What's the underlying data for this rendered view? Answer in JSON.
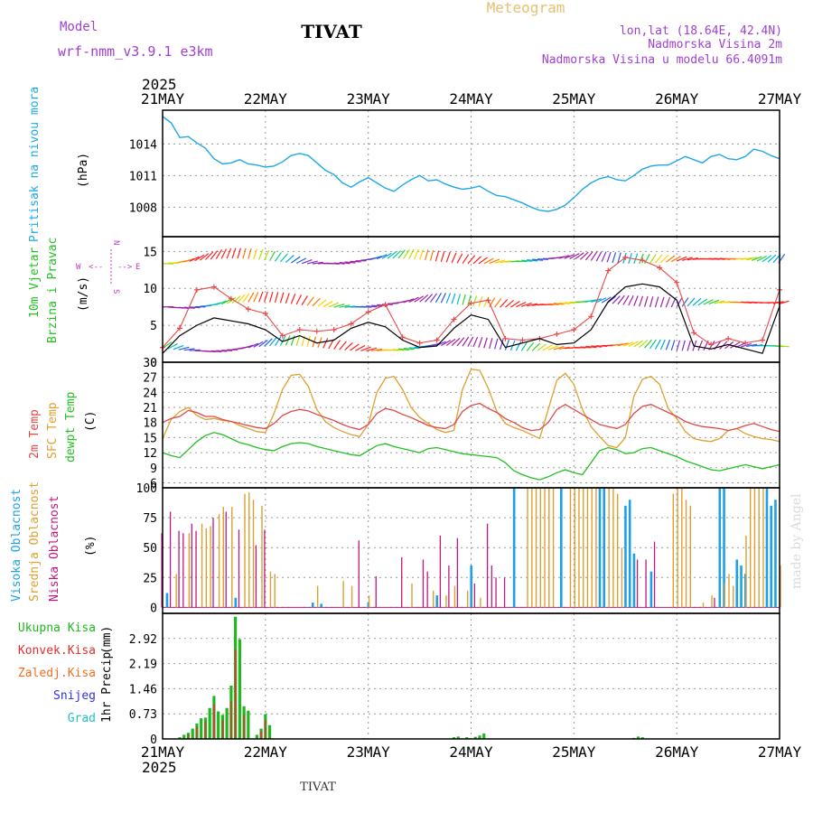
{
  "header": {
    "model_label": "Model",
    "model_name": "wrf-nmm_v3.9.1 e3km",
    "station": "TIVAT",
    "product": "Meteogram",
    "coords": "lon,lat (18.64E, 42.4N)",
    "elevation": "Nadmorska Visina 2m",
    "model_elevation": "Nadmorska Visina u modelu 66.4091m",
    "year_top": "2025",
    "year_bottom": "2025",
    "footer_station": "TIVAT",
    "watermark": "made by Angel"
  },
  "colors": {
    "pressure": "#1ea8e6",
    "gust": "#e84a4a",
    "wind_speed": "#000000",
    "temp2m": "#e04848",
    "sfc_temp": "#e0a030",
    "dewpoint": "#22c022",
    "high_cloud": "#1ea0e8",
    "mid_cloud": "#dca030",
    "low_cloud": "#c01880",
    "total_precip": "#1fb81f",
    "conv_precip": "#e03030",
    "frozen_precip": "#f07020",
    "snow": "#3030e0",
    "hail": "#20c0c0",
    "purple": "#a040d0",
    "compass": "#c040c0"
  },
  "chart_data": [
    {
      "type": "line",
      "name": "pressure",
      "ylabel_series": "Pritisak na nivou mora",
      "unit": "(hPa)",
      "ylim": [
        1005.2,
        1017.2
      ],
      "yticks": [
        1008,
        1011,
        1014
      ],
      "x_hours": [
        0,
        2,
        4,
        6,
        8,
        10,
        12,
        14,
        16,
        18,
        20,
        22,
        24,
        26,
        28,
        30,
        32,
        34,
        36,
        38,
        40,
        42,
        44,
        46,
        48,
        50,
        52,
        54,
        56,
        58,
        60,
        62,
        64,
        66,
        68,
        70,
        72,
        74,
        76,
        78,
        80,
        82,
        84,
        86,
        88,
        90,
        92,
        94,
        96,
        98,
        100,
        102,
        104,
        106,
        108,
        110,
        112,
        114,
        116,
        118,
        120,
        122,
        124,
        126,
        128,
        130,
        132,
        134,
        136,
        138,
        140,
        142,
        144
      ],
      "values": [
        1016.6,
        1016.0,
        1014.6,
        1014.7,
        1014.1,
        1013.6,
        1012.6,
        1012.1,
        1012.2,
        1012.5,
        1012.1,
        1012.0,
        1011.8,
        1011.9,
        1012.3,
        1012.9,
        1013.1,
        1012.9,
        1012.2,
        1011.5,
        1011.1,
        1010.3,
        1009.9,
        1010.4,
        1010.8,
        1010.3,
        1009.8,
        1009.5,
        1010.1,
        1010.6,
        1011.0,
        1010.5,
        1010.6,
        1010.2,
        1009.9,
        1009.7,
        1009.8,
        1010.0,
        1009.5,
        1009.1,
        1009.0,
        1008.7,
        1008.4,
        1008.0,
        1007.7,
        1007.6,
        1007.8,
        1008.2,
        1008.9,
        1009.7,
        1010.3,
        1010.7,
        1010.9,
        1010.6,
        1010.5,
        1011.0,
        1011.6,
        1011.9,
        1012.0,
        1012.0,
        1012.4,
        1012.8,
        1012.5,
        1012.2,
        1012.8,
        1013.0,
        1012.6,
        1012.5,
        1012.8,
        1013.5,
        1013.3,
        1012.9,
        1012.6
      ]
    },
    {
      "type": "line",
      "name": "wind",
      "ylabel_series_1": "10m Vjetar",
      "ylabel_series_2": "Brzina i Pravac",
      "unit": "(m/s)",
      "ylim": [
        0,
        17
      ],
      "yticks": [
        0,
        5,
        10,
        15
      ],
      "compass": {
        "n": "N",
        "s": "S",
        "e": "E",
        "w": "W"
      },
      "x_hours": [
        0,
        4,
        8,
        12,
        16,
        20,
        24,
        28,
        32,
        36,
        40,
        44,
        48,
        52,
        56,
        60,
        64,
        68,
        72,
        76,
        80,
        84,
        88,
        92,
        96,
        100,
        104,
        108,
        112,
        116,
        120,
        124,
        128,
        132,
        136,
        140,
        144
      ],
      "speed": [
        1.2,
        3.6,
        5.0,
        6.0,
        5.6,
        5.2,
        4.4,
        2.8,
        3.6,
        2.6,
        3.0,
        4.6,
        5.4,
        4.8,
        3.0,
        2.0,
        2.2,
        4.6,
        6.4,
        5.8,
        2.0,
        2.6,
        3.2,
        2.4,
        2.6,
        4.4,
        8.2,
        10.2,
        10.6,
        10.2,
        8.4,
        2.2,
        1.8,
        2.4,
        1.8,
        1.2,
        7.6
      ],
      "gust": [
        2.0,
        4.6,
        9.8,
        10.2,
        8.6,
        7.2,
        6.6,
        3.6,
        4.4,
        4.2,
        4.4,
        5.2,
        6.8,
        7.8,
        3.4,
        2.6,
        3.0,
        5.8,
        8.0,
        8.4,
        3.2,
        3.0,
        3.2,
        3.8,
        4.4,
        6.2,
        12.4,
        14.2,
        13.8,
        12.8,
        10.8,
        4.0,
        2.4,
        3.2,
        2.6,
        3.0,
        9.8
      ]
    },
    {
      "type": "line",
      "name": "temperature",
      "ylabel_series_1": "2m Temp",
      "ylabel_series_2": "SFC Temp",
      "ylabel_series_3": "dewpt Temp",
      "unit": "(C)",
      "ylim": [
        5,
        30
      ],
      "yticks": [
        6,
        9,
        12,
        15,
        18,
        21,
        24,
        27,
        30
      ],
      "x_hours": [
        0,
        2,
        4,
        6,
        8,
        10,
        12,
        14,
        16,
        18,
        20,
        22,
        24,
        26,
        28,
        30,
        32,
        34,
        36,
        38,
        40,
        42,
        44,
        46,
        48,
        50,
        52,
        54,
        56,
        58,
        60,
        62,
        64,
        66,
        68,
        70,
        72,
        74,
        76,
        78,
        80,
        82,
        84,
        86,
        88,
        90,
        92,
        94,
        96,
        98,
        100,
        102,
        104,
        106,
        108,
        110,
        112,
        114,
        116,
        118,
        120,
        122,
        124,
        126,
        128,
        130,
        132,
        134,
        136,
        138,
        140,
        142,
        144
      ],
      "t2m": [
        18.0,
        18.8,
        19.2,
        20.4,
        20.0,
        19.2,
        19.2,
        18.6,
        18.2,
        17.8,
        17.4,
        17.0,
        16.8,
        17.8,
        19.4,
        20.2,
        20.6,
        20.3,
        19.6,
        19.0,
        18.4,
        17.6,
        17.0,
        16.6,
        17.6,
        19.8,
        20.8,
        20.4,
        19.6,
        19.0,
        18.2,
        17.4,
        17.0,
        16.8,
        17.6,
        20.2,
        21.4,
        21.8,
        20.8,
        20.0,
        18.8,
        18.0,
        17.0,
        16.4,
        16.6,
        18.0,
        20.6,
        21.6,
        20.6,
        19.6,
        18.6,
        17.6,
        17.2,
        16.8,
        17.6,
        19.8,
        21.2,
        21.6,
        20.8,
        20.0,
        19.2,
        18.2,
        17.6,
        17.2,
        17.0,
        16.8,
        16.4,
        16.8,
        17.4,
        17.8,
        17.2,
        16.6,
        16.2
      ],
      "tsfc": [
        14.8,
        18.6,
        20.2,
        21.0,
        19.4,
        18.6,
        18.8,
        18.4,
        18.2,
        17.4,
        16.8,
        16.2,
        16.0,
        19.8,
        24.6,
        27.4,
        27.6,
        25.2,
        20.6,
        18.2,
        17.0,
        16.2,
        15.6,
        15.2,
        17.6,
        24.0,
        26.8,
        27.2,
        24.6,
        21.0,
        19.0,
        17.8,
        16.6,
        16.0,
        16.4,
        24.6,
        28.6,
        28.4,
        24.8,
        20.2,
        17.8,
        17.0,
        16.4,
        15.6,
        14.8,
        20.6,
        26.4,
        27.8,
        25.6,
        20.6,
        17.2,
        15.2,
        13.4,
        13.0,
        15.0,
        23.2,
        26.6,
        27.2,
        25.6,
        20.8,
        18.8,
        16.2,
        14.8,
        14.4,
        14.2,
        14.8,
        16.4,
        16.8,
        15.8,
        15.2,
        14.8,
        14.6,
        14.2
      ],
      "dewpt": [
        12.0,
        11.4,
        11.0,
        12.6,
        14.2,
        15.4,
        16.0,
        15.6,
        14.8,
        14.0,
        13.6,
        13.0,
        12.6,
        12.4,
        13.2,
        13.8,
        14.0,
        13.8,
        13.2,
        12.8,
        12.4,
        12.0,
        11.6,
        11.4,
        12.4,
        13.4,
        13.8,
        13.2,
        12.8,
        12.4,
        12.0,
        12.8,
        13.0,
        12.6,
        12.2,
        11.8,
        11.6,
        11.4,
        11.2,
        11.0,
        10.0,
        8.4,
        7.6,
        7.0,
        6.6,
        7.2,
        8.0,
        8.6,
        8.0,
        7.6,
        10.0,
        12.4,
        13.0,
        12.6,
        11.8,
        12.0,
        12.8,
        13.0,
        12.4,
        11.8,
        11.2,
        10.4,
        9.8,
        9.2,
        8.6,
        8.4,
        8.8,
        9.2,
        9.6,
        9.2,
        8.8,
        9.2,
        9.6
      ]
    },
    {
      "type": "bar",
      "name": "clouds",
      "ylabel_series_1": "Visoka Oblacnost",
      "ylabel_series_2": "Srednja Oblacnost",
      "ylabel_series_3": "Niska Oblacnost",
      "unit": "(%)",
      "ylim": [
        -5,
        100
      ],
      "yticks": [
        0,
        25,
        50,
        75,
        100
      ],
      "high": [
        [
          1,
          12
        ],
        [
          17,
          8
        ],
        [
          35,
          4
        ],
        [
          37,
          3
        ],
        [
          48,
          4
        ],
        [
          64,
          10
        ],
        [
          72,
          35
        ],
        [
          82,
          100
        ],
        [
          93,
          100
        ],
        [
          102,
          100
        ],
        [
          103,
          100
        ],
        [
          108,
          85
        ],
        [
          109,
          90
        ],
        [
          110,
          45
        ],
        [
          114,
          30
        ],
        [
          130,
          100
        ],
        [
          131,
          100
        ],
        [
          134,
          40
        ],
        [
          135,
          35
        ],
        [
          136,
          28
        ],
        [
          141,
          100
        ],
        [
          142,
          85
        ],
        [
          143,
          90
        ]
      ],
      "mid": [
        [
          3,
          28
        ],
        [
          6,
          62
        ],
        [
          9,
          70
        ],
        [
          10,
          66
        ],
        [
          11,
          68
        ],
        [
          13,
          78
        ],
        [
          14,
          84
        ],
        [
          16,
          84
        ],
        [
          19,
          95
        ],
        [
          20,
          96
        ],
        [
          21,
          90
        ],
        [
          23,
          85
        ],
        [
          25,
          30
        ],
        [
          26,
          28
        ],
        [
          36,
          18
        ],
        [
          42,
          22
        ],
        [
          44,
          18
        ],
        [
          48,
          10
        ],
        [
          58,
          20
        ],
        [
          63,
          14
        ],
        [
          66,
          10
        ],
        [
          68,
          18
        ],
        [
          71,
          14
        ],
        [
          74,
          8
        ],
        [
          85,
          100
        ],
        [
          86,
          100
        ],
        [
          87,
          100
        ],
        [
          88,
          100
        ],
        [
          89,
          100
        ],
        [
          90,
          100
        ],
        [
          91,
          100
        ],
        [
          95,
          100
        ],
        [
          96,
          100
        ],
        [
          97,
          100
        ],
        [
          98,
          100
        ],
        [
          99,
          100
        ],
        [
          100,
          100
        ],
        [
          101,
          100
        ],
        [
          104,
          100
        ],
        [
          105,
          100
        ],
        [
          106,
          95
        ],
        [
          107,
          50
        ],
        [
          119,
          95
        ],
        [
          120,
          100
        ],
        [
          121,
          100
        ],
        [
          122,
          90
        ],
        [
          123,
          85
        ],
        [
          126,
          4
        ],
        [
          128,
          10
        ],
        [
          131,
          20
        ],
        [
          132,
          28
        ],
        [
          133,
          18
        ],
        [
          136,
          60
        ],
        [
          137,
          100
        ],
        [
          138,
          100
        ],
        [
          139,
          100
        ],
        [
          140,
          100
        ],
        [
          144,
          35
        ]
      ],
      "low": [
        [
          0,
          62
        ],
        [
          2,
          80
        ],
        [
          4,
          64
        ],
        [
          5,
          62
        ],
        [
          7,
          70
        ],
        [
          8,
          64
        ],
        [
          12,
          75
        ],
        [
          15,
          80
        ],
        [
          18,
          65
        ],
        [
          22,
          52
        ],
        [
          24,
          65
        ],
        [
          46,
          56
        ],
        [
          50,
          26
        ],
        [
          56,
          42
        ],
        [
          61,
          40
        ],
        [
          62,
          30
        ],
        [
          65,
          60
        ],
        [
          67,
          35
        ],
        [
          69,
          58
        ],
        [
          73,
          20
        ],
        [
          76,
          70
        ],
        [
          77,
          35
        ],
        [
          78,
          25
        ],
        [
          80,
          25
        ],
        [
          111,
          40
        ],
        [
          113,
          40
        ],
        [
          115,
          55
        ],
        [
          129,
          8
        ]
      ]
    },
    {
      "type": "bar",
      "name": "precip",
      "legend": [
        "Ukupna Kisa",
        "Konvek.Kisa",
        "Zaledj.Kisa",
        "Snijeg",
        "Grad"
      ],
      "ylabel_series": "1hr Precip",
      "unit": "(mm)",
      "ylim": [
        0,
        3.65
      ],
      "yticks": [
        0,
        0.73,
        1.46,
        2.19,
        2.92
      ],
      "ytick_labels": [
        "0",
        "0.73",
        "1.46",
        "2.19",
        "2.92"
      ],
      "total": [
        [
          4,
          0.05
        ],
        [
          5,
          0.12
        ],
        [
          6,
          0.18
        ],
        [
          7,
          0.3
        ],
        [
          8,
          0.45
        ],
        [
          9,
          0.6
        ],
        [
          10,
          0.62
        ],
        [
          11,
          0.9
        ],
        [
          12,
          1.25
        ],
        [
          13,
          0.8
        ],
        [
          14,
          0.7
        ],
        [
          15,
          0.9
        ],
        [
          16,
          1.55
        ],
        [
          17,
          3.55
        ],
        [
          18,
          2.9
        ],
        [
          19,
          0.95
        ],
        [
          20,
          0.82
        ],
        [
          22,
          0.12
        ],
        [
          23,
          0.3
        ],
        [
          24,
          0.72
        ],
        [
          25,
          0.4
        ],
        [
          47,
          0.02
        ],
        [
          68,
          0.05
        ],
        [
          69,
          0.07
        ],
        [
          71,
          0.05
        ],
        [
          73,
          0.06
        ],
        [
          74,
          0.1
        ],
        [
          75,
          0.16
        ],
        [
          110,
          0.03
        ],
        [
          111,
          0.07
        ],
        [
          112,
          0.05
        ]
      ],
      "conv": [
        [
          6,
          0.12
        ],
        [
          8,
          0.35
        ],
        [
          10,
          0.5
        ],
        [
          12,
          1.0
        ],
        [
          14,
          0.55
        ],
        [
          16,
          1.1
        ],
        [
          17,
          2.6
        ],
        [
          19,
          0.7
        ],
        [
          23,
          0.22
        ],
        [
          24,
          0.55
        ]
      ]
    }
  ],
  "axis": {
    "dates": [
      "21MAY",
      "22MAY",
      "23MAY",
      "24MAY",
      "25MAY",
      "26MAY",
      "27MAY"
    ]
  }
}
